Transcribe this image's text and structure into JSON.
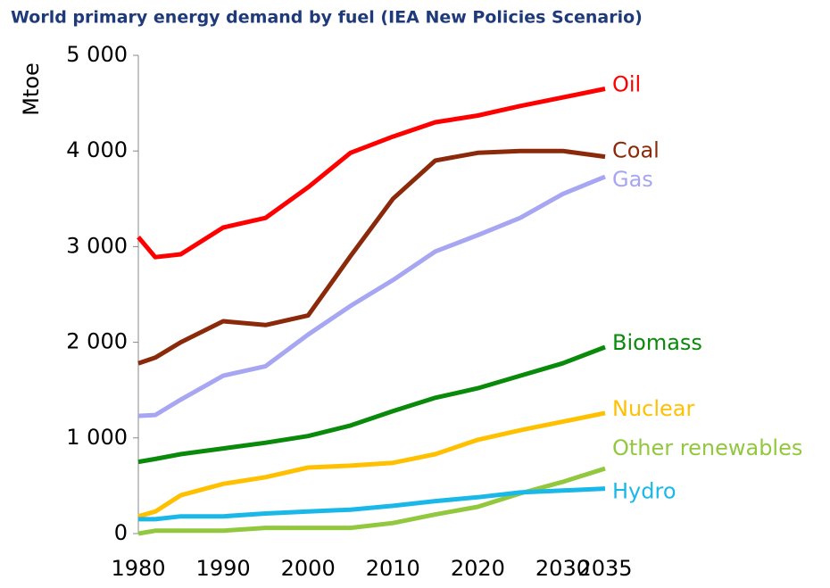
{
  "chart_data": {
    "type": "line",
    "title": "World primary energy demand by fuel (IEA New Policies Scenario)",
    "y_label": "Mtoe",
    "x": [
      1980,
      1982,
      1985,
      1990,
      1995,
      2000,
      2005,
      2010,
      2015,
      2020,
      2025,
      2030,
      2035
    ],
    "xlim": [
      1980,
      2035
    ],
    "xticks": [
      1980,
      1990,
      2000,
      2010,
      2020,
      2030,
      2035
    ],
    "ylim": [
      0,
      5000
    ],
    "yticks": [
      0,
      {
        "value": 1000,
        "label": "1 000"
      },
      {
        "value": 2000,
        "label": "2 000"
      },
      {
        "value": 3000,
        "label": "3 000"
      },
      {
        "value": 4000,
        "label": "4 000"
      },
      {
        "value": 5000,
        "label": "5 000"
      }
    ],
    "series": [
      {
        "name": "Oil",
        "color": "#ff0000",
        "values": [
          3100,
          2890,
          2920,
          3200,
          3300,
          3620,
          3980,
          4150,
          4300,
          4370,
          4470,
          4560,
          4650
        ]
      },
      {
        "name": "Coal",
        "color": "#8b2a0a",
        "values": [
          1780,
          1840,
          2000,
          2220,
          2180,
          2280,
          2900,
          3500,
          3900,
          3980,
          4000,
          4000,
          3940
        ]
      },
      {
        "name": "Gas",
        "color": "#a6a6f2",
        "values": [
          1230,
          1240,
          1400,
          1650,
          1750,
          2080,
          2380,
          2650,
          2950,
          3120,
          3300,
          3550,
          3730
        ]
      },
      {
        "name": "Biomass",
        "color": "#0a8a0a",
        "values": [
          750,
          780,
          830,
          890,
          950,
          1020,
          1130,
          1280,
          1420,
          1520,
          1650,
          1780,
          1950
        ]
      },
      {
        "name": "Nuclear",
        "color": "#ffc000",
        "values": [
          180,
          230,
          400,
          520,
          590,
          690,
          710,
          740,
          830,
          980,
          1080,
          1170,
          1260
        ]
      },
      {
        "name": "Other renewables",
        "color": "#92c83e",
        "values": [
          0,
          30,
          30,
          30,
          60,
          60,
          60,
          110,
          200,
          280,
          420,
          540,
          680
        ]
      },
      {
        "name": "Hydro",
        "color": "#1ab8e8",
        "values": [
          150,
          150,
          180,
          180,
          210,
          230,
          250,
          290,
          340,
          380,
          430,
          450,
          470
        ]
      }
    ]
  }
}
